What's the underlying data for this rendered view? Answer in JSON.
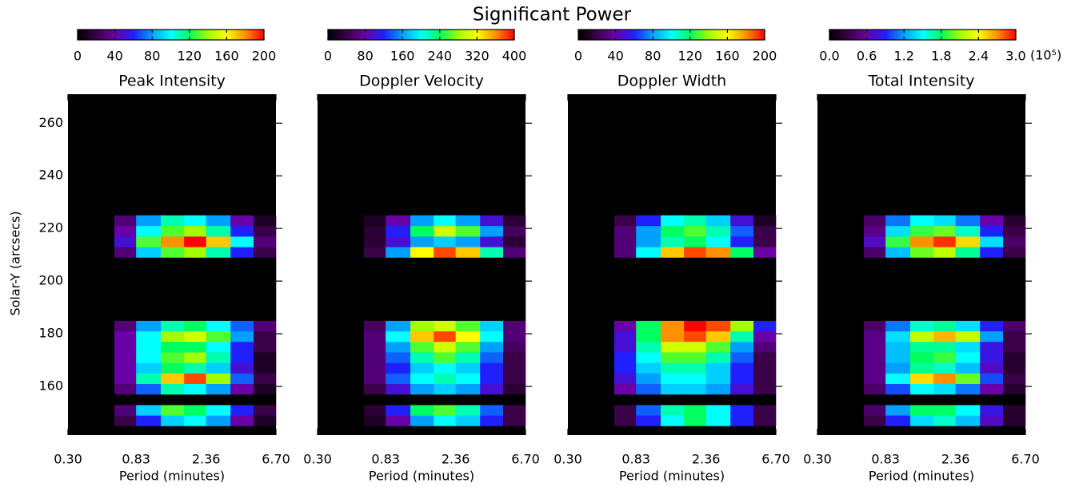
{
  "title": "Significant Power",
  "colormap": [
    "#000000",
    "#3a0048",
    "#6a00a8",
    "#2020ff",
    "#00a0ff",
    "#00ffff",
    "#00ff60",
    "#a0ff00",
    "#ffff00",
    "#ff9000",
    "#ff0000"
  ],
  "chart_data": [
    {
      "type": "heatmap",
      "title": "Peak Intensity",
      "xlabel": "Period (minutes)",
      "ylabel": "Solar-Y (arcsecs)",
      "xscale": "log",
      "xlim": [
        0.3,
        6.7
      ],
      "xticks": [
        {
          "value": 0.3,
          "label": "0.30"
        },
        0.83,
        2.36,
        {
          "value": 6.7,
          "label": "6.70"
        }
      ],
      "ylim": [
        141.5,
        271
      ],
      "yticks": [
        160,
        180,
        200,
        220,
        240,
        260
      ],
      "x_edges": [
        0.45,
        0.6,
        0.83,
        1.2,
        1.7,
        2.36,
        3.4,
        4.8,
        6.7
      ],
      "y_edges": [
        145,
        149,
        153,
        157,
        161,
        165,
        169,
        173,
        177,
        181,
        185,
        209,
        213,
        217,
        221,
        225
      ],
      "colorbar": {
        "vlim": [
          0,
          200
        ],
        "ticks": [
          0,
          40,
          80,
          120,
          160,
          200
        ]
      },
      "z": [
        [
          0,
          20,
          60,
          90,
          100,
          80,
          40,
          10
        ],
        [
          0,
          30,
          90,
          130,
          120,
          100,
          60,
          20
        ],
        [
          0,
          0,
          0,
          0,
          0,
          0,
          0,
          0
        ],
        [
          0,
          30,
          70,
          110,
          100,
          80,
          40,
          10
        ],
        [
          0,
          40,
          110,
          170,
          190,
          140,
          70,
          20
        ],
        [
          0,
          40,
          90,
          120,
          110,
          90,
          50,
          10
        ],
        [
          0,
          40,
          100,
          130,
          140,
          110,
          60,
          10
        ],
        [
          0,
          40,
          100,
          120,
          120,
          100,
          60,
          20
        ],
        [
          0,
          40,
          100,
          140,
          150,
          130,
          80,
          20
        ],
        [
          0,
          30,
          80,
          110,
          120,
          100,
          70,
          30
        ],
        [
          0,
          0,
          0,
          0,
          0,
          0,
          0,
          0
        ],
        [
          0,
          30,
          90,
          130,
          140,
          110,
          60,
          20
        ],
        [
          0,
          50,
          130,
          180,
          200,
          170,
          100,
          30
        ],
        [
          0,
          40,
          100,
          130,
          140,
          110,
          60,
          20
        ],
        [
          0,
          30,
          80,
          110,
          100,
          80,
          40,
          10
        ]
      ]
    },
    {
      "type": "heatmap",
      "title": "Doppler Velocity",
      "xlabel": "Period (minutes)",
      "xscale": "log",
      "xlim": [
        0.3,
        6.7
      ],
      "xticks": [
        {
          "value": 0.3,
          "label": "0.30"
        },
        0.83,
        2.36,
        {
          "value": 6.7,
          "label": "6.70"
        }
      ],
      "ylim": [
        141.5,
        271
      ],
      "x_edges": [
        0.45,
        0.6,
        0.83,
        1.2,
        1.7,
        2.36,
        3.4,
        4.8,
        6.7
      ],
      "y_edges": [
        145,
        149,
        153,
        157,
        161,
        165,
        169,
        173,
        177,
        181,
        185,
        209,
        213,
        217,
        221,
        225
      ],
      "colorbar": {
        "vlim": [
          0,
          400
        ],
        "ticks": [
          0,
          80,
          160,
          240,
          320,
          400
        ]
      },
      "z": [
        [
          0,
          20,
          80,
          160,
          200,
          180,
          120,
          40
        ],
        [
          0,
          30,
          120,
          240,
          260,
          220,
          140,
          40
        ],
        [
          0,
          0,
          0,
          0,
          0,
          0,
          0,
          0
        ],
        [
          0,
          40,
          100,
          160,
          180,
          160,
          100,
          30
        ],
        [
          0,
          60,
          140,
          200,
          220,
          200,
          120,
          40
        ],
        [
          0,
          60,
          120,
          180,
          200,
          180,
          120,
          40
        ],
        [
          0,
          60,
          140,
          220,
          260,
          220,
          140,
          40
        ],
        [
          0,
          60,
          160,
          260,
          300,
          260,
          160,
          50
        ],
        [
          0,
          60,
          200,
          340,
          380,
          320,
          200,
          60
        ],
        [
          0,
          50,
          160,
          280,
          300,
          260,
          180,
          60
        ],
        [
          0,
          0,
          0,
          0,
          0,
          0,
          0,
          0
        ],
        [
          0,
          40,
          160,
          320,
          380,
          340,
          220,
          60
        ],
        [
          0,
          30,
          100,
          160,
          180,
          160,
          100,
          30
        ],
        [
          0,
          30,
          120,
          240,
          300,
          260,
          160,
          50
        ],
        [
          0,
          20,
          80,
          160,
          200,
          160,
          100,
          30
        ]
      ]
    },
    {
      "type": "heatmap",
      "title": "Doppler Width",
      "xlabel": "Period (minutes)",
      "xscale": "log",
      "xlim": [
        0.3,
        6.7
      ],
      "xticks": [
        {
          "value": 0.3,
          "label": "0.30"
        },
        0.83,
        2.36,
        {
          "value": 6.7,
          "label": "6.70"
        }
      ],
      "ylim": [
        141.5,
        271
      ],
      "x_edges": [
        0.45,
        0.6,
        0.83,
        1.2,
        1.7,
        2.36,
        3.4,
        4.8,
        6.7
      ],
      "y_edges": [
        145,
        149,
        153,
        157,
        161,
        165,
        169,
        173,
        177,
        181,
        185,
        209,
        213,
        217,
        221,
        225
      ],
      "colorbar": {
        "vlim": [
          0,
          200
        ],
        "ticks": [
          0,
          40,
          80,
          120,
          160,
          200
        ]
      },
      "z": [
        [
          0,
          20,
          60,
          100,
          120,
          100,
          60,
          20
        ],
        [
          0,
          20,
          70,
          110,
          120,
          100,
          60,
          20
        ],
        [
          0,
          0,
          0,
          0,
          0,
          0,
          0,
          0
        ],
        [
          0,
          40,
          70,
          90,
          90,
          80,
          50,
          20
        ],
        [
          0,
          50,
          80,
          100,
          100,
          90,
          60,
          20
        ],
        [
          0,
          60,
          90,
          110,
          110,
          90,
          60,
          20
        ],
        [
          0,
          60,
          100,
          130,
          130,
          110,
          70,
          20
        ],
        [
          0,
          50,
          110,
          150,
          150,
          130,
          80,
          30
        ],
        [
          0,
          50,
          120,
          180,
          190,
          170,
          110,
          40
        ],
        [
          0,
          40,
          120,
          180,
          200,
          190,
          140,
          60
        ],
        [
          0,
          0,
          0,
          0,
          0,
          0,
          0,
          0
        ],
        [
          0,
          30,
          100,
          170,
          190,
          180,
          120,
          40
        ],
        [
          0,
          30,
          80,
          110,
          120,
          100,
          60,
          20
        ],
        [
          0,
          30,
          80,
          120,
          130,
          110,
          70,
          20
        ],
        [
          0,
          20,
          60,
          100,
          110,
          90,
          50,
          10
        ]
      ]
    },
    {
      "type": "heatmap",
      "title": "Total Intensity",
      "xlabel": "Period (minutes)",
      "xscale": "log",
      "xlim": [
        0.3,
        6.7
      ],
      "xticks": [
        {
          "value": 0.3,
          "label": "0.30"
        },
        0.83,
        2.36,
        {
          "value": 6.7,
          "label": "6.70"
        }
      ],
      "ylim": [
        141.5,
        271
      ],
      "x_edges": [
        0.45,
        0.6,
        0.83,
        1.2,
        1.7,
        2.36,
        3.4,
        4.8,
        6.7
      ],
      "y_edges": [
        145,
        149,
        153,
        157,
        161,
        165,
        169,
        173,
        177,
        181,
        185,
        209,
        213,
        217,
        221,
        225
      ],
      "colorbar": {
        "vlim": [
          0,
          3
        ],
        "ticks": [
          {
            "value": 0,
            "label": "0.0"
          },
          0.6,
          1.2,
          1.8,
          2.4,
          {
            "value": 3,
            "label": "3.0"
          }
        ],
        "unit": "(10⁵)"
      },
      "z": [
        [
          0,
          0.3,
          0.9,
          1.4,
          1.6,
          1.3,
          0.7,
          0.2
        ],
        [
          0,
          0.4,
          1.2,
          1.8,
          1.8,
          1.5,
          0.8,
          0.2
        ],
        [
          0,
          0,
          0,
          0,
          0,
          0,
          0,
          0
        ],
        [
          0,
          0.4,
          1,
          1.5,
          1.4,
          1.1,
          0.6,
          0.2
        ],
        [
          0,
          0.5,
          1.5,
          2.5,
          2.7,
          2,
          1,
          0.3
        ],
        [
          0,
          0.5,
          1.2,
          1.7,
          1.6,
          1.3,
          0.7,
          0.2
        ],
        [
          0,
          0.5,
          1.3,
          1.8,
          1.9,
          1.5,
          0.8,
          0.2
        ],
        [
          0,
          0.5,
          1.3,
          1.7,
          1.7,
          1.4,
          0.8,
          0.3
        ],
        [
          0,
          0.5,
          1.4,
          2.2,
          2.6,
          2.2,
          1.2,
          0.3
        ],
        [
          0,
          0.4,
          1.1,
          1.6,
          1.7,
          1.4,
          0.9,
          0.4
        ],
        [
          0,
          0,
          0,
          0,
          0,
          0,
          0,
          0
        ],
        [
          0,
          0.4,
          1.3,
          2,
          2.2,
          1.7,
          0.9,
          0.3
        ],
        [
          0,
          0.7,
          1.9,
          2.7,
          2.9,
          2.5,
          1.4,
          0.4
        ],
        [
          0,
          0.5,
          1.4,
          1.9,
          2,
          1.6,
          0.9,
          0.3
        ],
        [
          0,
          0.4,
          1.1,
          1.5,
          1.4,
          1.1,
          0.6,
          0.2
        ]
      ]
    }
  ]
}
